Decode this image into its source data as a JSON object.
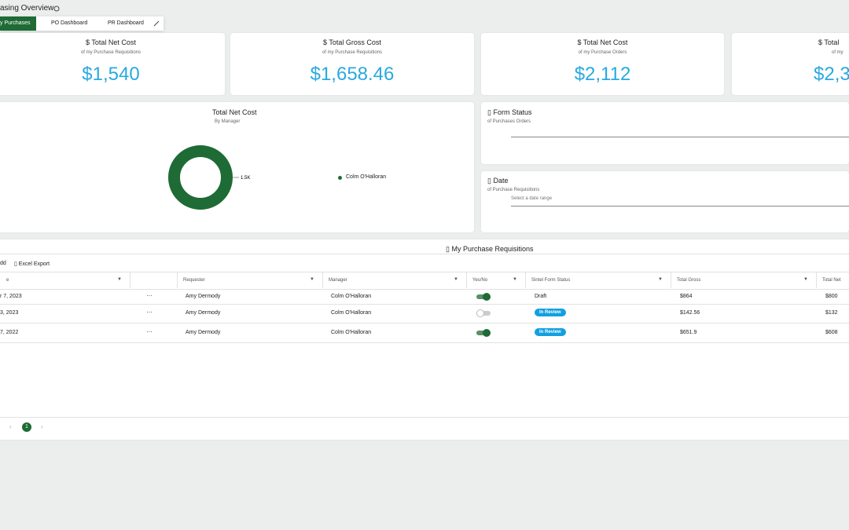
{
  "header": {
    "title": "asing Overview"
  },
  "tabs": [
    "y Purchases",
    "PO Dashboard",
    "PR Dashboard"
  ],
  "cards": [
    {
      "icon": "$",
      "title": "Total Net Cost",
      "subtitle": "of my Purchase Requisitions",
      "value": "$1,540"
    },
    {
      "icon": "$",
      "title": "Total Gross Cost",
      "subtitle": "of my Purchase Requisitions",
      "value": "$1,658.46"
    },
    {
      "icon": "$",
      "title": "Total Net Cost",
      "subtitle": "of my Purchase Orders",
      "value": "$2,112"
    },
    {
      "icon": "$",
      "title": "Total",
      "subtitle": "of my",
      "value": "$2,3"
    }
  ],
  "donut": {
    "title": "Total Net Cost",
    "subtitle": "By Manager",
    "slice_label": "1.5K",
    "legend": "Colm O'Halloran",
    "color": "#1e6b35"
  },
  "form_status": {
    "title": "Form Status",
    "subtitle": "of Purchases Orders"
  },
  "date": {
    "title": "Date",
    "subtitle": "of Purchase Requisitions",
    "placeholder": "Select a date range"
  },
  "table": {
    "title": "My Purchase Requisitions",
    "toolbar": [
      "dd",
      "Excel Export"
    ],
    "columns": [
      "e",
      "",
      "Requester",
      "Manager",
      "Yes/No",
      "Sintel Form Status",
      "Total Gross",
      "Total Net"
    ],
    "rows": [
      {
        "date": "r 7, 2023",
        "requester": "Amy Dermody",
        "manager": "Colm O'Halloran",
        "yes_no": true,
        "status": "Draft",
        "badge": false,
        "gross": "$864",
        "net": "$800"
      },
      {
        "date": "3, 2023",
        "requester": "Amy Dermody",
        "manager": "Colm O'Halloran",
        "yes_no": false,
        "status": "In Review",
        "badge": true,
        "gross": "$142.56",
        "net": "$132"
      },
      {
        "date": "7, 2022",
        "requester": "Amy Dermody",
        "manager": "Colm O'Halloran",
        "yes_no": true,
        "status": "In Review",
        "badge": true,
        "gross": "$651.9",
        "net": "$608"
      }
    ],
    "page": "1"
  }
}
